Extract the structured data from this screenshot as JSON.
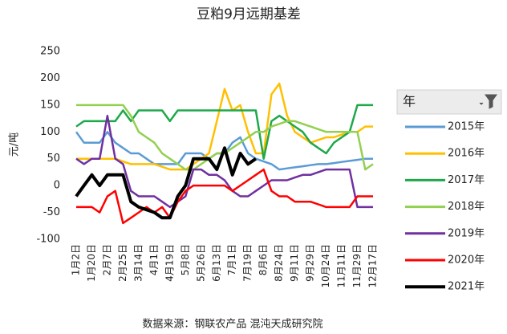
{
  "chart_data": {
    "type": "line",
    "title": "豆粕9月远期基差",
    "y_label": "元/吨",
    "source": "数据来源：钢联农产品 混沌天成研究院",
    "legend_title": "年",
    "categories": [
      "1月2日",
      null,
      "1月20日",
      null,
      "2月7日",
      null,
      "2月25日",
      null,
      "3月14日",
      null,
      "4月1日",
      null,
      "4月19日",
      null,
      "5月8日",
      null,
      "5月26日",
      null,
      "6月13日",
      null,
      "7月1日",
      null,
      "7月19日",
      null,
      "8月6日",
      null,
      "8月24日",
      null,
      "9月11日",
      null,
      "9月29日",
      null,
      "10月24日",
      null,
      "11月11日",
      null,
      "11月29日",
      null,
      "12月17日"
    ],
    "ylim": [
      -100,
      250
    ],
    "yticks": [
      -100,
      -50,
      0,
      50,
      100,
      150,
      200,
      250
    ],
    "series": [
      {
        "name": "2015年",
        "color": "#5b9bd5",
        "values": [
          100,
          80,
          80,
          80,
          100,
          80,
          70,
          60,
          60,
          50,
          40,
          40,
          40,
          40,
          60,
          60,
          60,
          50,
          60,
          60,
          80,
          90,
          60,
          50,
          45,
          40,
          30,
          32,
          34,
          36,
          38,
          40,
          40,
          42,
          44,
          46,
          48,
          50,
          50
        ]
      },
      {
        "name": "2016年",
        "color": "#ffc000",
        "values": [
          50,
          50,
          50,
          50,
          50,
          50,
          45,
          40,
          40,
          40,
          40,
          35,
          30,
          30,
          30,
          40,
          50,
          60,
          120,
          180,
          140,
          150,
          100,
          60,
          60,
          170,
          190,
          130,
          100,
          90,
          80,
          85,
          90,
          90,
          95,
          100,
          100,
          110,
          110
        ]
      },
      {
        "name": "2017年",
        "color": "#1ea84a",
        "values": [
          110,
          120,
          120,
          120,
          120,
          120,
          140,
          120,
          140,
          140,
          140,
          140,
          120,
          140,
          140,
          140,
          140,
          140,
          140,
          140,
          140,
          140,
          140,
          140,
          50,
          120,
          130,
          120,
          110,
          100,
          80,
          70,
          60,
          80,
          90,
          100,
          150,
          150,
          150
        ]
      },
      {
        "name": "2018年",
        "color": "#92d050",
        "values": [
          150,
          150,
          150,
          150,
          150,
          150,
          150,
          130,
          100,
          90,
          80,
          60,
          50,
          40,
          30,
          30,
          40,
          50,
          60,
          60,
          70,
          80,
          90,
          100,
          100,
          110,
          115,
          120,
          120,
          115,
          110,
          105,
          100,
          100,
          100,
          100,
          100,
          30,
          40
        ]
      },
      {
        "name": "2019年",
        "color": "#7030a0",
        "values": [
          50,
          40,
          50,
          50,
          130,
          50,
          40,
          -10,
          -20,
          -20,
          -20,
          -30,
          -40,
          -30,
          -20,
          30,
          30,
          20,
          20,
          10,
          -10,
          -20,
          -20,
          -10,
          0,
          10,
          10,
          10,
          15,
          20,
          20,
          25,
          30,
          30,
          30,
          30,
          -40,
          -40,
          -40
        ]
      },
      {
        "name": "2020年",
        "color": "#ff0000",
        "values": [
          -40,
          -40,
          -40,
          -50,
          -20,
          -10,
          -70,
          -60,
          -50,
          -40,
          -50,
          -40,
          -60,
          -30,
          -10,
          0,
          0,
          0,
          0,
          0,
          -10,
          0,
          10,
          20,
          30,
          -10,
          -20,
          -20,
          -30,
          -30,
          -30,
          -35,
          -40,
          -40,
          -40,
          -40,
          -20,
          -20,
          -20
        ]
      },
      {
        "name": "2021年",
        "color": "#000000",
        "width": 4,
        "values": [
          -20,
          0,
          20,
          0,
          20,
          20,
          20,
          -30,
          -40,
          -45,
          -50,
          -60,
          -60,
          -20,
          0,
          50,
          50,
          50,
          30,
          70,
          20,
          60,
          40,
          50,
          null,
          null,
          null,
          null,
          null,
          null,
          null,
          null,
          null,
          null,
          null,
          null,
          null,
          null,
          null
        ]
      }
    ]
  }
}
